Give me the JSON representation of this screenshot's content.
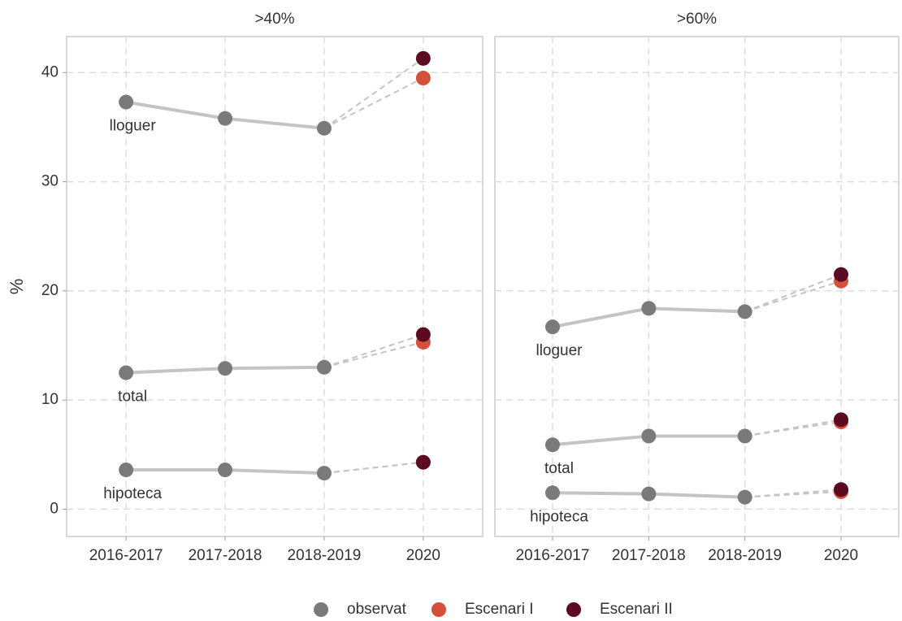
{
  "chart_data": [
    {
      "type": "line",
      "title": ">40%",
      "ylabel": "%",
      "categories": [
        "2016-2017",
        "2017-2018",
        "2018-2019",
        "2020"
      ],
      "ylim": [
        -2.5,
        43.3
      ],
      "yticks": [
        0,
        10,
        20,
        30,
        40
      ],
      "grid": true,
      "groups": [
        {
          "name": "lloguer",
          "values": [
            37.3,
            35.8,
            34.9
          ],
          "scenarios": [
            39.5,
            41.3
          ]
        },
        {
          "name": "total",
          "values": [
            12.5,
            12.9,
            13.0
          ],
          "scenarios": [
            15.3,
            16.0
          ]
        },
        {
          "name": "hipoteca",
          "values": [
            3.6,
            3.6,
            3.3
          ],
          "scenarios": [
            4.3,
            4.3
          ]
        }
      ]
    },
    {
      "type": "line",
      "title": ">60%",
      "categories": [
        "2016-2017",
        "2017-2018",
        "2018-2019",
        "2020"
      ],
      "ylim": [
        -2.5,
        43.3
      ],
      "yticks": [
        0,
        10,
        20,
        30,
        40
      ],
      "grid": true,
      "groups": [
        {
          "name": "lloguer",
          "values": [
            16.7,
            18.4,
            18.1
          ],
          "scenarios": [
            20.9,
            21.5
          ]
        },
        {
          "name": "total",
          "values": [
            5.9,
            6.7,
            6.7
          ],
          "scenarios": [
            8.0,
            8.2
          ]
        },
        {
          "name": "hipoteca",
          "values": [
            1.5,
            1.4,
            1.1
          ],
          "scenarios": [
            1.6,
            1.8
          ]
        }
      ]
    }
  ],
  "legend": [
    {
      "name": "observat",
      "color": "#7a7a7a"
    },
    {
      "name": "Escenari I",
      "color": "#d5503b"
    },
    {
      "name": "Escenari II",
      "color": "#5c0a22"
    }
  ]
}
